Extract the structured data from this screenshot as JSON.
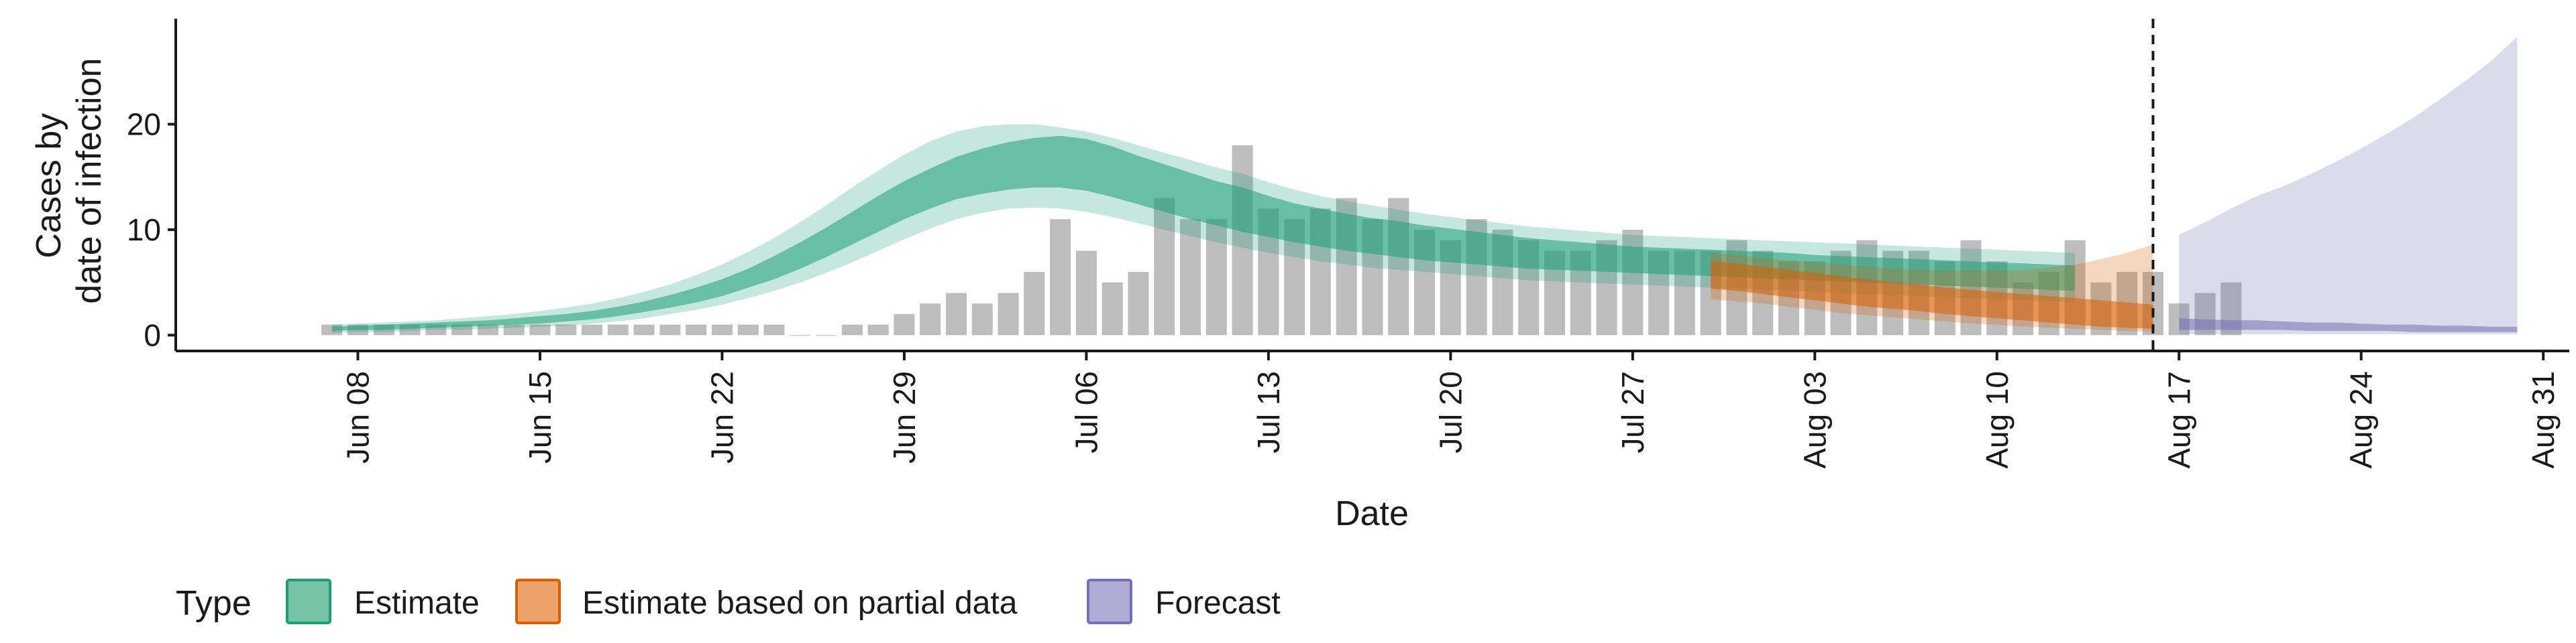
{
  "chart_data": {
    "type": "bar",
    "title": "",
    "xlabel": "Date",
    "ylabel": [
      "Cases by",
      "date of infection"
    ],
    "xlim": [
      "2020-06-01",
      "2020-09-01"
    ],
    "ylim": [
      -1.5,
      30
    ],
    "x_ticks": [
      "Jun 08",
      "Jun 15",
      "Jun 22",
      "Jun 29",
      "Jul 06",
      "Jul 13",
      "Jul 20",
      "Jul 27",
      "Aug 03",
      "Aug 10",
      "Aug 17",
      "Aug 24",
      "Aug 31"
    ],
    "y_ticks": [
      0,
      10,
      20
    ],
    "forecast_start": "2020-08-16",
    "grid": false,
    "legend": {
      "position": "bottom",
      "title": "Type",
      "entries": [
        {
          "label": "Estimate",
          "fill": "#76c3a8",
          "stroke": "#1b9e77"
        },
        {
          "label": "Estimate based on partial data",
          "fill": "#eca16a",
          "stroke": "#d95f02"
        },
        {
          "label": "Forecast",
          "fill": "#b1acd6",
          "stroke": "#7570b3"
        }
      ]
    },
    "colors": {
      "bars": "#bdbdbd",
      "estimate": "#1b9e77",
      "partial": "#d95f02",
      "forecast": "#7570b3",
      "vline": "#1a1a1a"
    },
    "observed": {
      "start_date": "2020-06-07",
      "values": [
        1,
        1,
        1,
        1,
        1,
        1,
        1,
        1,
        1,
        1,
        1,
        1,
        1,
        1,
        1,
        1,
        1,
        1,
        0,
        0,
        1,
        1,
        2,
        3,
        4,
        3,
        4,
        6,
        11,
        8,
        5,
        6,
        13,
        11,
        11,
        18,
        12,
        11,
        12,
        13,
        11,
        13,
        10,
        9,
        11,
        10,
        9,
        8,
        8,
        9,
        10,
        8,
        8,
        8,
        9,
        8,
        7,
        7,
        8,
        9,
        8,
        8,
        7,
        9,
        7,
        5,
        6,
        9,
        5,
        6,
        6,
        3,
        4,
        5
      ]
    },
    "estimate": {
      "start_date": "2020-06-07",
      "median": [
        0.6,
        0.7,
        0.7,
        0.8,
        0.9,
        1.0,
        1.1,
        1.2,
        1.4,
        1.6,
        1.9,
        2.2,
        2.7,
        3.2,
        3.8,
        4.5,
        5.4,
        6.4,
        7.5,
        8.8,
        10.2,
        11.6,
        12.9,
        14.0,
        15.0,
        15.8,
        16.4,
        16.7,
        16.9,
        16.6,
        16.0,
        15.2,
        14.4,
        13.6,
        12.8,
        12.2,
        11.5,
        10.8,
        10.3,
        9.9,
        9.5,
        9.2,
        8.9,
        8.6,
        8.3,
        8.0,
        7.8,
        7.6,
        7.4,
        7.2,
        7.1,
        7.0,
        6.9,
        6.8,
        6.7,
        6.6,
        6.5,
        6.3,
        6.2,
        6.1,
        6.0,
        5.9,
        5.8,
        5.7,
        5.6,
        5.5,
        5.4,
        5.3
      ],
      "lower_50": [
        0.4,
        0.5,
        0.5,
        0.6,
        0.7,
        0.8,
        0.9,
        1.0,
        1.1,
        1.3,
        1.5,
        1.8,
        2.2,
        2.6,
        3.1,
        3.7,
        4.5,
        5.3,
        6.3,
        7.4,
        8.6,
        9.8,
        11.0,
        12.0,
        12.9,
        13.4,
        13.8,
        14.0,
        14.0,
        13.7,
        13.1,
        12.4,
        11.7,
        11.0,
        10.4,
        9.8,
        9.3,
        8.8,
        8.4,
        8.0,
        7.7,
        7.4,
        7.1,
        6.9,
        6.7,
        6.5,
        6.3,
        6.2,
        6.1,
        6.0,
        5.9,
        5.8,
        5.7,
        5.6,
        5.5,
        5.4,
        5.3,
        5.2,
        5.1,
        5.0,
        4.9,
        4.8,
        4.7,
        4.6,
        4.5,
        4.4,
        4.3,
        4.2
      ],
      "upper_50": [
        0.8,
        0.9,
        1.0,
        1.1,
        1.2,
        1.3,
        1.4,
        1.6,
        1.8,
        2.0,
        2.3,
        2.7,
        3.2,
        3.8,
        4.5,
        5.3,
        6.3,
        7.5,
        8.8,
        10.2,
        11.7,
        13.2,
        14.6,
        15.8,
        16.9,
        17.7,
        18.3,
        18.7,
        18.9,
        18.6,
        17.9,
        17.0,
        16.2,
        15.4,
        14.6,
        14.0,
        13.2,
        12.5,
        12.0,
        11.5,
        11.1,
        10.8,
        10.4,
        10.1,
        9.8,
        9.5,
        9.2,
        9.0,
        8.8,
        8.6,
        8.4,
        8.3,
        8.2,
        8.1,
        8.0,
        7.9,
        7.8,
        7.6,
        7.5,
        7.4,
        7.3,
        7.2,
        7.1,
        7.0,
        6.9,
        6.8,
        6.7,
        6.6
      ],
      "lower_90": [
        0.2,
        0.3,
        0.3,
        0.4,
        0.5,
        0.5,
        0.6,
        0.7,
        0.8,
        0.9,
        1.1,
        1.3,
        1.6,
        2.0,
        2.4,
        2.9,
        3.5,
        4.2,
        5.0,
        5.9,
        6.9,
        8.0,
        9.1,
        10.1,
        11.0,
        11.6,
        12.0,
        12.1,
        12.0,
        11.7,
        11.2,
        10.6,
        10.0,
        9.4,
        8.8,
        8.3,
        7.8,
        7.4,
        7.0,
        6.7,
        6.4,
        6.2,
        6.0,
        5.8,
        5.6,
        5.4,
        5.2,
        5.1,
        5.0,
        4.9,
        4.8,
        4.7,
        4.6,
        4.5,
        4.4,
        4.3,
        4.2,
        4.1,
        4.0,
        3.9,
        3.8,
        3.7,
        3.6,
        3.5,
        3.4,
        3.3,
        3.2,
        3.1
      ],
      "upper_90": [
        1.0,
        1.1,
        1.2,
        1.3,
        1.4,
        1.6,
        1.8,
        2.0,
        2.3,
        2.6,
        3.0,
        3.5,
        4.1,
        4.8,
        5.7,
        6.7,
        7.9,
        9.2,
        10.7,
        12.3,
        14.0,
        15.6,
        17.1,
        18.4,
        19.3,
        19.8,
        20.0,
        20.0,
        19.7,
        19.3,
        18.7,
        18.0,
        17.3,
        16.6,
        15.9,
        15.3,
        14.5,
        13.8,
        13.2,
        12.7,
        12.3,
        11.9,
        11.5,
        11.2,
        10.9,
        10.6,
        10.3,
        10.1,
        9.9,
        9.7,
        9.5,
        9.4,
        9.3,
        9.2,
        9.1,
        9.0,
        8.9,
        8.8,
        8.7,
        8.6,
        8.5,
        8.4,
        8.3,
        8.2,
        8.1,
        8.0,
        7.9,
        7.8
      ]
    },
    "partial": {
      "start_date": "2020-07-30",
      "median": [
        5.7,
        5.4,
        5.1,
        4.8,
        4.5,
        4.2,
        3.9,
        3.6,
        3.4,
        3.1,
        2.9,
        2.7,
        2.5,
        2.3,
        2.1,
        1.9,
        1.7,
        1.5
      ],
      "lower_50": [
        4.4,
        4.2,
        3.9,
        3.6,
        3.3,
        3.0,
        2.7,
        2.5,
        2.3,
        2.0,
        1.8,
        1.6,
        1.4,
        1.2,
        1.0,
        0.8,
        0.7,
        0.6
      ],
      "upper_50": [
        7.1,
        6.8,
        6.5,
        6.2,
        5.9,
        5.6,
        5.3,
        5.0,
        4.8,
        4.5,
        4.3,
        4.1,
        3.9,
        3.7,
        3.5,
        3.3,
        3.1,
        2.9
      ],
      "lower_90": [
        3.4,
        3.2,
        3.0,
        2.7,
        2.4,
        2.1,
        1.9,
        1.7,
        1.5,
        1.3,
        1.1,
        1.0,
        0.8,
        0.7,
        0.6,
        0.5,
        0.4,
        0.3
      ],
      "upper_90": [
        7.8,
        7.6,
        7.3,
        7.1,
        6.9,
        6.7,
        6.5,
        6.3,
        6.2,
        6.1,
        6.1,
        6.1,
        6.2,
        6.4,
        6.7,
        7.2,
        7.8,
        8.6
      ]
    },
    "forecast": {
      "start_date": "2020-08-17",
      "lower_90": [
        0.1,
        0.1,
        0.1,
        0.1,
        0.1,
        0.1,
        0.1,
        0.1,
        0.1,
        0.1,
        0.1,
        0.1,
        0.1,
        0.1
      ],
      "upper_90": [
        9.5,
        10.7,
        12.0,
        13.2,
        14.1,
        15.2,
        16.4,
        17.7,
        19.1,
        20.6,
        22.3,
        24.1,
        26.0,
        28.3
      ],
      "lower_50": [
        0.5,
        0.5,
        0.5,
        0.5,
        0.5,
        0.4,
        0.4,
        0.4,
        0.4,
        0.3,
        0.3,
        0.3,
        0.3,
        0.3
      ],
      "upper_50": [
        1.6,
        1.5,
        1.4,
        1.4,
        1.3,
        1.2,
        1.2,
        1.1,
        1.0,
        1.0,
        0.9,
        0.9,
        0.8,
        0.8
      ],
      "median": [
        1.0,
        1.0,
        0.9,
        0.9,
        0.9,
        0.8,
        0.8,
        0.8,
        0.7,
        0.7,
        0.6,
        0.6,
        0.6,
        0.5
      ]
    }
  }
}
